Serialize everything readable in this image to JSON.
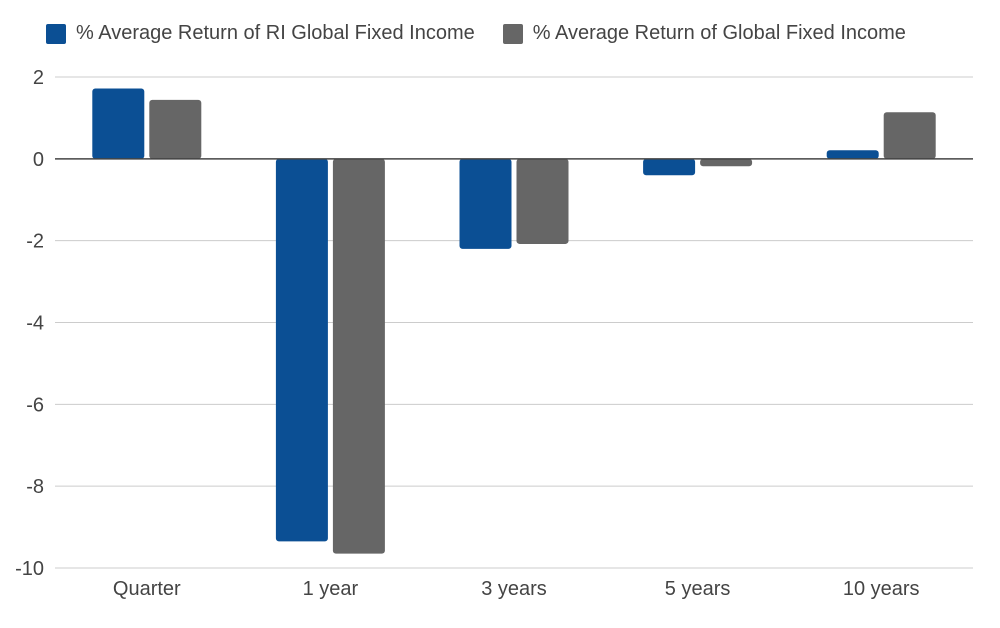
{
  "chart_data": {
    "type": "bar",
    "categories": [
      "Quarter",
      "1 year",
      "3 years",
      "5 years",
      "10 years"
    ],
    "series": [
      {
        "name": "% Average Return of RI Global Fixed Income",
        "color": "#0b4f94",
        "values": [
          1.72,
          -9.35,
          -2.2,
          -0.4,
          0.21
        ]
      },
      {
        "name": "% Average Return of Global Fixed Income",
        "color": "#666666",
        "values": [
          1.44,
          -9.65,
          -2.08,
          -0.18,
          1.14
        ]
      }
    ],
    "yticks": [
      2,
      0,
      -2,
      -4,
      -6,
      -8,
      -10
    ],
    "ylim": [
      -10,
      2
    ],
    "grid": true,
    "legend_position": "top-left",
    "xlabel": "",
    "ylabel": "",
    "title": ""
  }
}
